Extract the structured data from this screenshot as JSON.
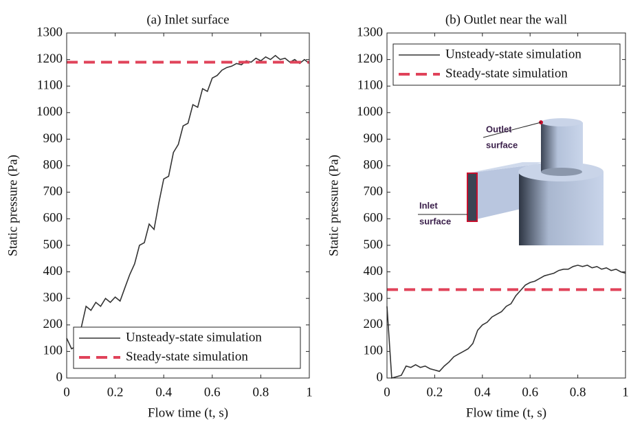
{
  "chart_data": [
    {
      "type": "line",
      "title": "(a) Inlet surface",
      "xlabel": "Flow time (t, s)",
      "ylabel": "Static pressure (Pa)",
      "xlim": [
        0,
        1
      ],
      "xticks": [
        0,
        0.2,
        0.4,
        0.6,
        0.8,
        1
      ],
      "ylim": [
        0,
        1300
      ],
      "yticks": [
        0,
        100,
        200,
        300,
        400,
        500,
        600,
        700,
        800,
        900,
        1000,
        1100,
        1200,
        1300
      ],
      "legend": "lower right",
      "series": [
        {
          "name": "Unsteady-state simulation",
          "color": "#333333",
          "dashed": false,
          "x": [
            0,
            0.02,
            0.04,
            0.06,
            0.08,
            0.1,
            0.12,
            0.14,
            0.16,
            0.18,
            0.2,
            0.22,
            0.24,
            0.26,
            0.28,
            0.3,
            0.32,
            0.34,
            0.36,
            0.38,
            0.4,
            0.42,
            0.44,
            0.46,
            0.48,
            0.5,
            0.52,
            0.54,
            0.56,
            0.58,
            0.6,
            0.62,
            0.64,
            0.66,
            0.68,
            0.7,
            0.72,
            0.74,
            0.76,
            0.78,
            0.8,
            0.82,
            0.84,
            0.86,
            0.88,
            0.9,
            0.92,
            0.94,
            0.96,
            0.98,
            1
          ],
          "values": [
            150,
            110,
            120,
            190,
            270,
            255,
            285,
            270,
            300,
            285,
            305,
            290,
            340,
            390,
            430,
            500,
            510,
            580,
            560,
            660,
            750,
            760,
            850,
            880,
            950,
            960,
            1030,
            1020,
            1090,
            1080,
            1130,
            1140,
            1160,
            1170,
            1175,
            1185,
            1180,
            1195,
            1190,
            1205,
            1195,
            1210,
            1200,
            1215,
            1200,
            1205,
            1190,
            1200,
            1185,
            1200,
            1185
          ]
        },
        {
          "name": "Steady-state simulation",
          "color": "#e0435a",
          "dashed": true,
          "x": [
            0,
            1
          ],
          "values": [
            1190,
            1190
          ]
        }
      ]
    },
    {
      "type": "line",
      "title": "(b) Outlet near the wall",
      "xlabel": "Flow time (t, s)",
      "ylabel": "Static pressure (Pa)",
      "xlim": [
        0,
        1
      ],
      "xticks": [
        0,
        0.2,
        0.4,
        0.6,
        0.8,
        1
      ],
      "ylim": [
        0,
        1300
      ],
      "yticks": [
        0,
        100,
        200,
        300,
        400,
        500,
        600,
        700,
        800,
        900,
        1000,
        1100,
        1200,
        1300
      ],
      "legend": "upper left",
      "annotations": [
        [
          "Outlet",
          "surface"
        ],
        [
          "Inlet",
          "surface"
        ]
      ],
      "series": [
        {
          "name": "Unsteady-state simulation",
          "color": "#333333",
          "dashed": false,
          "x": [
            0,
            0.02,
            0.04,
            0.06,
            0.08,
            0.1,
            0.12,
            0.14,
            0.16,
            0.18,
            0.2,
            0.22,
            0.24,
            0.26,
            0.28,
            0.3,
            0.32,
            0.34,
            0.36,
            0.38,
            0.4,
            0.42,
            0.44,
            0.46,
            0.48,
            0.5,
            0.52,
            0.54,
            0.56,
            0.58,
            0.6,
            0.62,
            0.64,
            0.66,
            0.68,
            0.7,
            0.72,
            0.74,
            0.76,
            0.78,
            0.8,
            0.82,
            0.84,
            0.86,
            0.88,
            0.9,
            0.92,
            0.94,
            0.96,
            0.98,
            1
          ],
          "values": [
            270,
            0,
            5,
            10,
            45,
            40,
            50,
            40,
            45,
            35,
            30,
            25,
            45,
            60,
            80,
            90,
            100,
            110,
            130,
            180,
            200,
            210,
            230,
            240,
            250,
            270,
            280,
            310,
            330,
            350,
            360,
            365,
            375,
            385,
            390,
            395,
            405,
            410,
            410,
            420,
            425,
            420,
            425,
            415,
            420,
            410,
            415,
            405,
            410,
            400,
            395
          ]
        },
        {
          "name": "Steady-state simulation",
          "color": "#e0435a",
          "dashed": true,
          "x": [
            0,
            1
          ],
          "values": [
            333,
            333
          ]
        }
      ]
    }
  ]
}
